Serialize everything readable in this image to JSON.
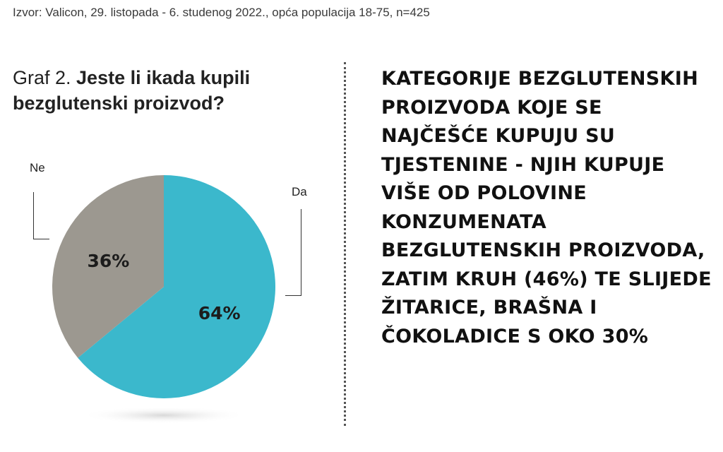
{
  "source": "Izvor: Valicon, 29. listopada - 6. studenog 2022., opća populacija 18-75, n=425",
  "title": {
    "prefix": "Graf 2. ",
    "question": "Jeste li ikada kupili bezglutenski proizvod?"
  },
  "headline": "KATEGORIJE BEZGLUTENSKIH PROIZVODA KOJE SE NAJČEŠĆE KUPUJU SU TJESTENINE - NJIH KUPUJE VIŠE OD POLOVINE KONZUMENATA BEZGLUTENSKIH PROIZVODA, ZATIM KRUH (46%) TE SLIJEDE ŽITARICE, BRAŠNA I ČOKOLADICE S OKO 30%",
  "chart_data": {
    "type": "pie",
    "categories": [
      "Da",
      "Ne"
    ],
    "values": [
      64,
      36
    ],
    "data_labels": [
      "64%",
      "36%"
    ],
    "colors": [
      "#3bb8cc",
      "#9c9890"
    ],
    "start": "12 o'clock, clockwise",
    "title": "Graf 2. Jeste li ikada kupili bezglutenski proizvod?"
  }
}
